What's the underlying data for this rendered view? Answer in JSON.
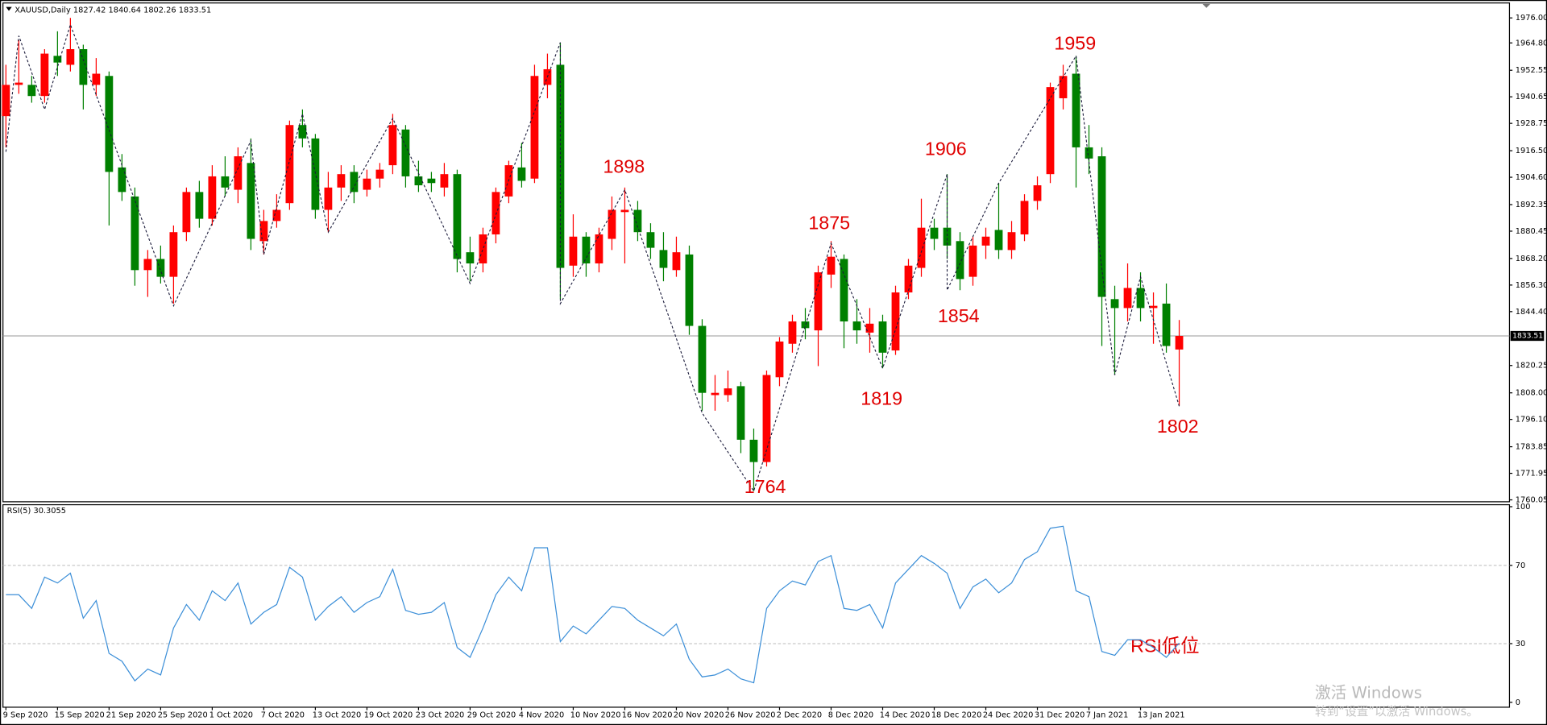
{
  "chart_data": {
    "type": "candlestick",
    "header": "XAUUSD,Daily  1827.42 1840.64 1802.26 1833.51",
    "up_color": "#ff0000",
    "down_color": "#008000",
    "categories": [
      "9 Sep 2020",
      null,
      null,
      null,
      "15 Sep 2020",
      null,
      null,
      null,
      "21 Sep 2020",
      null,
      null,
      null,
      "25 Sep 2020",
      null,
      null,
      null,
      "1 Oct 2020",
      null,
      null,
      null,
      "7 Oct 2020",
      null,
      null,
      null,
      "13 Oct 2020",
      null,
      null,
      null,
      "19 Oct 2020",
      null,
      null,
      null,
      "23 Oct 2020",
      null,
      null,
      null,
      "29 Oct 2020",
      null,
      null,
      null,
      "4 Nov 2020",
      null,
      null,
      null,
      "10 Nov 2020",
      null,
      null,
      null,
      "16 Nov 2020",
      null,
      null,
      null,
      "20 Nov 2020",
      null,
      null,
      null,
      "26 Nov 2020",
      null,
      null,
      null,
      "2 Dec 2020",
      null,
      null,
      null,
      "8 Dec 2020",
      null,
      null,
      null,
      "14 Dec 2020",
      null,
      null,
      null,
      "18 Dec 2020",
      null,
      null,
      null,
      "24 Dec 2020",
      null,
      null,
      null,
      "31 Dec 2020",
      null,
      null,
      null,
      "7 Jan 2021",
      null,
      null,
      null,
      "13 Jan 2021",
      null,
      null,
      null
    ],
    "open": [
      1932,
      1946,
      1946,
      1941,
      1959,
      1955,
      1962,
      1946,
      1950,
      1909,
      1896,
      1863,
      1868,
      1860,
      1880,
      1898,
      1886,
      1905,
      1899,
      1911,
      1876,
      1885,
      1893,
      1928,
      1922,
      1890,
      1900,
      1907,
      1899,
      1904,
      1910,
      1926,
      1905,
      1904,
      1900,
      1906,
      1871,
      1866,
      1879,
      1896,
      1909,
      1904,
      1946,
      1955,
      1865,
      1878,
      1866,
      1877,
      1889,
      1890,
      1880,
      1872,
      1863,
      1870,
      1838,
      1807,
      1807,
      1811,
      1787,
      1777,
      1815,
      1830,
      1840,
      1836,
      1861,
      1868,
      1840,
      1835,
      1840,
      1827,
      1853,
      1864,
      1882,
      1882,
      1876,
      1860,
      1874,
      1881,
      1872,
      1879,
      1894,
      1906,
      1940,
      1951,
      1918,
      1914,
      1850,
      1846,
      1855,
      1846,
      1848,
      1827.42
    ],
    "high": [
      1955,
      1966,
      1950,
      1962,
      1970,
      1976,
      1964,
      1958,
      1952,
      1915,
      1900,
      1872,
      1874,
      1883,
      1900,
      1903,
      1910,
      1914,
      1918,
      1922,
      1890,
      1897,
      1930,
      1935,
      1924,
      1907,
      1910,
      1910,
      1908,
      1911,
      1933,
      1928,
      1912,
      1907,
      1911,
      1908,
      1878,
      1882,
      1900,
      1912,
      1920,
      1955,
      1960,
      1965,
      1888,
      1880,
      1882,
      1896,
      1900,
      1894,
      1884,
      1880,
      1878,
      1874,
      1841,
      1816,
      1818,
      1813,
      1792,
      1818,
      1833,
      1843,
      1846,
      1865,
      1876,
      1870,
      1850,
      1846,
      1843,
      1856,
      1868,
      1895,
      1886,
      1906,
      1880,
      1878,
      1882,
      1902,
      1885,
      1897,
      1905,
      1947,
      1955,
      1959,
      1928,
      1918,
      1856,
      1866,
      1862,
      1853,
      1857,
      1840.64
    ],
    "low": [
      1918,
      1942,
      1938,
      1938,
      1950,
      1952,
      1935,
      1941,
      1883,
      1894,
      1856,
      1851,
      1857,
      1848,
      1876,
      1882,
      1883,
      1896,
      1893,
      1872,
      1870,
      1882,
      1890,
      1918,
      1886,
      1880,
      1894,
      1893,
      1896,
      1900,
      1906,
      1900,
      1898,
      1898,
      1896,
      1862,
      1858,
      1862,
      1875,
      1893,
      1900,
      1902,
      1940,
      1850,
      1860,
      1860,
      1862,
      1872,
      1866,
      1876,
      1868,
      1858,
      1860,
      1834,
      1800,
      1800,
      1804,
      1781,
      1764,
      1775,
      1811,
      1826,
      1832,
      1820,
      1855,
      1828,
      1830,
      1826,
      1819,
      1825,
      1850,
      1860,
      1872,
      1868,
      1854,
      1856,
      1868,
      1868,
      1868,
      1876,
      1890,
      1902,
      1935,
      1900,
      1906,
      1829,
      1816,
      1840,
      1840,
      1830,
      1826,
      1802.26
    ],
    "close": [
      1946,
      1947,
      1941,
      1960,
      1956,
      1962,
      1946,
      1951,
      1907,
      1898,
      1863,
      1868,
      1860,
      1880,
      1898,
      1886,
      1905,
      1900,
      1914,
      1877,
      1885,
      1890,
      1928,
      1922,
      1890,
      1900,
      1906,
      1898,
      1904,
      1908,
      1928,
      1905,
      1901,
      1902,
      1906,
      1868,
      1866,
      1879,
      1898,
      1910,
      1903,
      1950,
      1953,
      1864,
      1878,
      1866,
      1879,
      1890,
      1890,
      1880,
      1873,
      1864,
      1871,
      1838,
      1808,
      1808,
      1810,
      1787,
      1777,
      1816,
      1831,
      1840,
      1837,
      1862,
      1869,
      1840,
      1836,
      1839,
      1826,
      1853,
      1865,
      1882,
      1877,
      1874,
      1859,
      1874,
      1878,
      1872,
      1880,
      1894,
      1901,
      1945,
      1950,
      1918,
      1913,
      1851,
      1846,
      1855,
      1846,
      1847,
      1829,
      1833.51
    ],
    "ylim": [
      1759.2,
      1982.7
    ],
    "yticks": [
      {
        "value": 1976,
        "label": "1976.00"
      },
      {
        "value": 1964.8,
        "label": "1964.80"
      },
      1952.55,
      1940.65,
      1928.75,
      {
        "value": 1916.5,
        "label": "1916.50"
      },
      {
        "value": 1904.6,
        "label": "1904.60"
      },
      1892.35,
      1880.45,
      {
        "value": 1868.2,
        "label": "1868.20"
      },
      {
        "value": 1856.3,
        "label": "1856.30"
      },
      {
        "value": 1844.4,
        "label": "1844.40"
      },
      1820.25,
      {
        "value": 1808,
        "label": "1808.00"
      },
      {
        "value": 1796.1,
        "label": "1796.10"
      },
      1783.85,
      1771.95,
      1760.05
    ],
    "price_line": 1833.51,
    "zigzag": {
      "color": "#1a1a3a",
      "x": [
        0,
        1,
        3,
        5,
        13,
        19,
        20,
        23,
        25,
        30,
        36,
        43,
        43,
        48,
        54,
        58,
        64,
        68,
        73,
        73,
        77,
        83,
        86,
        88,
        91
      ],
      "values": [
        1916,
        1968,
        1935,
        1973,
        1847,
        1921,
        1870,
        1933,
        1880,
        1931,
        1857,
        1965,
        1848,
        1899,
        1799,
        1764,
        1875,
        1819,
        1906,
        1854,
        1902,
        1959,
        1816,
        1860,
        1802
      ]
    },
    "annotations": [
      "1898",
      "1875",
      "1959",
      "1906",
      "1854",
      "1819",
      "1764",
      "1802",
      "RSI低位"
    ],
    "rsi": {
      "label": "RSI(5) 30.3055",
      "color": "#3c8fd8",
      "values": [
        55,
        55,
        48,
        64,
        61,
        66,
        43,
        52,
        25,
        21,
        11,
        17,
        14,
        38,
        50,
        42,
        57,
        52,
        61,
        40,
        46,
        50,
        69,
        64,
        42,
        49,
        54,
        46,
        51,
        54,
        68,
        47,
        45,
        46,
        51,
        28,
        23,
        38,
        55,
        64,
        57,
        79,
        79,
        31,
        39,
        35,
        42,
        49,
        48,
        42,
        38,
        34,
        40,
        22,
        13,
        14,
        17,
        12,
        10,
        48,
        57,
        62,
        60,
        72,
        75,
        48,
        47,
        50,
        38,
        61,
        68,
        75,
        71,
        66,
        48,
        59,
        63,
        56,
        61,
        73,
        77,
        89,
        90,
        57,
        54,
        26,
        24,
        32,
        32,
        28,
        23,
        30.3055
      ],
      "ylim": [
        -2.5,
        101
      ],
      "yticks": [
        0,
        30,
        70,
        100
      ],
      "levels": [
        30,
        70
      ]
    },
    "watermark": [
      "激活 Windows",
      "转到“设置”以激活 Windows。"
    ]
  }
}
